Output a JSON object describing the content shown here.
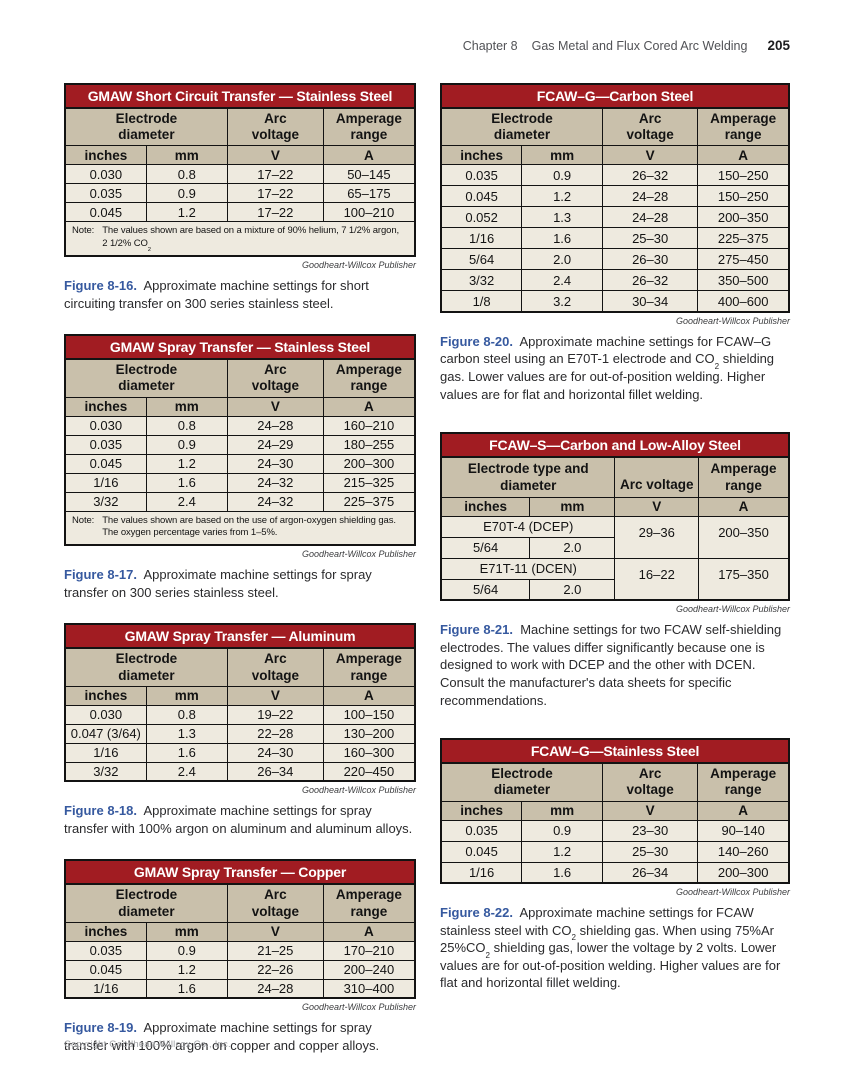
{
  "page": {
    "header": {
      "chapter": "Chapter 8",
      "title": "Gas Metal and Flux Cored Arc Welding",
      "page_number": "205"
    },
    "footer": "Copyright Goodheart-Willcox Co., Inc.",
    "publisher_credit": "Goodheart-Willcox Publisher",
    "colors": {
      "table_title_bg": "#A11C22",
      "table_header_bg": "#C9C0AB",
      "table_body_bg": "#EEEADF",
      "caption_blue": "#36599F"
    }
  },
  "tables": {
    "t16": {
      "title": "GMAW Short Circuit Transfer — Stainless Steel",
      "headers": {
        "col1": "Electrode\ndiameter",
        "col2": "Arc\nvoltage",
        "col3": "Amperage\nrange"
      },
      "units": [
        "inches",
        "mm",
        "V",
        "A"
      ],
      "rows": [
        [
          "0.030",
          "0.8",
          "17–22",
          "50–145"
        ],
        [
          "0.035",
          "0.9",
          "17–22",
          "65–175"
        ],
        [
          "0.045",
          "1.2",
          "17–22",
          "100–210"
        ]
      ],
      "note": {
        "label": "Note:",
        "lines": [
          [
            {
              "t": "The values shown are based on a mixture of 90% helium, 7 1/2% argon,"
            }
          ],
          [
            {
              "t": "2 1/2% CO"
            },
            {
              "sub": "2"
            }
          ]
        ]
      },
      "caption": [
        {
          "b": "Figure 8-16."
        },
        {
          "t": "  Approximate machine settings for short circuiting transfer on 300 series stainless steel."
        }
      ]
    },
    "t17": {
      "title": "GMAW Spray Transfer — Stainless Steel",
      "headers": {
        "col1": "Electrode\ndiameter",
        "col2": "Arc\nvoltage",
        "col3": "Amperage\nrange"
      },
      "units": [
        "inches",
        "mm",
        "V",
        "A"
      ],
      "rows": [
        [
          "0.030",
          "0.8",
          "24–28",
          "160–210"
        ],
        [
          "0.035",
          "0.9",
          "24–29",
          "180–255"
        ],
        [
          "0.045",
          "1.2",
          "24–30",
          "200–300"
        ],
        [
          "1/16",
          "1.6",
          "24–32",
          "215–325"
        ],
        [
          "3/32",
          "2.4",
          "24–32",
          "225–375"
        ]
      ],
      "note": {
        "label": "Note:",
        "lines": [
          [
            {
              "t": "The values shown are based on the use of argon-oxygen shielding gas."
            }
          ],
          [
            {
              "t": "The oxygen percentage varies from 1–5%."
            }
          ]
        ]
      },
      "caption": [
        {
          "b": "Figure 8-17."
        },
        {
          "t": "  Approximate machine settings for spray transfer on 300 series stainless steel."
        }
      ]
    },
    "t18": {
      "title": "GMAW Spray Transfer — Aluminum",
      "headers": {
        "col1": "Electrode\ndiameter",
        "col2": "Arc\nvoltage",
        "col3": "Amperage\nrange"
      },
      "units": [
        "inches",
        "mm",
        "V",
        "A"
      ],
      "rows": [
        [
          "0.030",
          "0.8",
          "19–22",
          "100–150"
        ],
        [
          "0.047 (3/64)",
          "1.3",
          "22–28",
          "130–200"
        ],
        [
          "1/16",
          "1.6",
          "24–30",
          "160–300"
        ],
        [
          "3/32",
          "2.4",
          "26–34",
          "220–450"
        ]
      ],
      "caption": [
        {
          "b": "Figure 8-18."
        },
        {
          "t": "  Approximate machine settings for spray transfer with 100% argon on aluminum and aluminum alloys."
        }
      ]
    },
    "t19": {
      "title": "GMAW Spray Transfer — Copper",
      "headers": {
        "col1": "Electrode\ndiameter",
        "col2": "Arc\nvoltage",
        "col3": "Amperage\nrange"
      },
      "units": [
        "inches",
        "mm",
        "V",
        "A"
      ],
      "rows": [
        [
          "0.035",
          "0.9",
          "21–25",
          "170–210"
        ],
        [
          "0.045",
          "1.2",
          "22–26",
          "200–240"
        ],
        [
          "1/16",
          "1.6",
          "24–28",
          "310–400"
        ]
      ],
      "caption": [
        {
          "b": "Figure 8-19."
        },
        {
          "t": "  Approximate machine settings for spray transfer with 100% argon on copper and copper alloys."
        }
      ]
    },
    "t20": {
      "title": "FCAW–G—Carbon Steel",
      "headers": {
        "col1": "Electrode\ndiameter",
        "col2": "Arc\nvoltage",
        "col3": "Amperage\nrange"
      },
      "units": [
        "inches",
        "mm",
        "V",
        "A"
      ],
      "rows": [
        [
          "0.035",
          "0.9",
          "26–32",
          "150–250"
        ],
        [
          "0.045",
          "1.2",
          "24–28",
          "150–250"
        ],
        [
          "0.052",
          "1.3",
          "24–28",
          "200–350"
        ],
        [
          "1/16",
          "1.6",
          "25–30",
          "225–375"
        ],
        [
          "5/64",
          "2.0",
          "26–30",
          "275–450"
        ],
        [
          "3/32",
          "2.4",
          "26–32",
          "350–500"
        ],
        [
          "1/8",
          "3.2",
          "30–34",
          "400–600"
        ]
      ],
      "caption": [
        {
          "b": "Figure 8-20."
        },
        {
          "t": "  Approximate machine settings for FCAW–G carbon steel using an E70T-1 electrode and CO"
        },
        {
          "sub": "2"
        },
        {
          "t": " shielding gas. Lower values are for out-of-position welding. Higher values are for flat and horizontal fillet welding."
        }
      ]
    },
    "t21": {
      "title": "FCAW–S—Carbon and Low-Alloy Steel",
      "headers": {
        "col1": "Electrode type and\ndiameter",
        "col2": "Arc voltage",
        "col3": "Amperage\nrange"
      },
      "units": [
        "inches",
        "mm",
        "V",
        "A"
      ],
      "groups": [
        {
          "type": "E70T-4 (DCEP)",
          "inches": "5/64",
          "mm": "2.0",
          "voltage": "29–36",
          "amperage": "200–350"
        },
        {
          "type": "E71T-11 (DCEN)",
          "inches": "5/64",
          "mm": "2.0",
          "voltage": "16–22",
          "amperage": "175–350"
        }
      ],
      "caption": [
        {
          "b": "Figure 8-21."
        },
        {
          "t": "  Machine settings for two FCAW self-shielding electrodes. The values differ significantly because one is designed to work with DCEP and the other with DCEN. Consult the manufacturer's data sheets for specific recommendations."
        }
      ]
    },
    "t22": {
      "title": "FCAW–G—Stainless Steel",
      "headers": {
        "col1": "Electrode\ndiameter",
        "col2": "Arc\nvoltage",
        "col3": "Amperage\nrange"
      },
      "units": [
        "inches",
        "mm",
        "V",
        "A"
      ],
      "rows": [
        [
          "0.035",
          "0.9",
          "23–30",
          "90–140"
        ],
        [
          "0.045",
          "1.2",
          "25–30",
          "140–260"
        ],
        [
          "1/16",
          "1.6",
          "26–34",
          "200–300"
        ]
      ],
      "caption": [
        {
          "b": "Figure 8-22."
        },
        {
          "t": "  Approximate machine settings for FCAW stainless steel with CO"
        },
        {
          "sub": "2"
        },
        {
          "t": " shielding gas. When using 75%Ar 25%CO"
        },
        {
          "sub": "2"
        },
        {
          "t": " shielding gas, lower the voltage by 2 volts. Lower values are for out-of-position welding. Higher values are for flat and horizontal fillet welding."
        }
      ]
    }
  }
}
